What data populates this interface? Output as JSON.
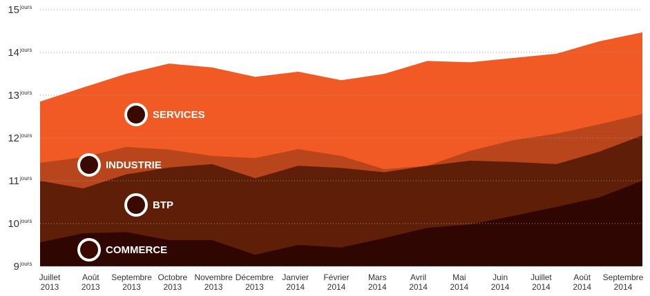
{
  "chart_data": {
    "type": "area",
    "y_unit": "jours",
    "categories": [
      "Juillet\n2013",
      "Août\n2013",
      "Septembre\n2013",
      "Octobre\n2013",
      "Novembre\n2013",
      "Décembre\n2013",
      "Janvier\n2014",
      "Février\n2014",
      "Mars\n2014",
      "Avril\n2014",
      "Mai\n2014",
      "Juin\n2014",
      "Juillet\n2014",
      "Août\n2014",
      "Septembre\n2014"
    ],
    "series": [
      {
        "name": "SERVICES",
        "color": "#f15a24",
        "values": [
          12.85,
          13.18,
          13.5,
          13.74,
          13.65,
          13.43,
          13.55,
          13.35,
          13.5,
          13.8,
          13.77,
          13.87,
          13.97,
          14.26,
          14.47
        ]
      },
      {
        "name": "INDUSTRIE",
        "color": "#b8451b",
        "values": [
          11.42,
          11.55,
          11.79,
          11.73,
          11.58,
          11.53,
          11.74,
          11.58,
          11.27,
          11.35,
          11.7,
          11.95,
          12.1,
          12.32,
          12.56
        ]
      },
      {
        "name": "BTP",
        "color": "#5e1e08",
        "values": [
          11.0,
          10.82,
          11.15,
          11.31,
          11.39,
          11.06,
          11.35,
          11.3,
          11.2,
          11.35,
          11.47,
          11.44,
          11.39,
          11.68,
          12.06
        ]
      },
      {
        "name": "COMMERCE",
        "color": "#2f0601",
        "values": [
          9.56,
          9.77,
          9.8,
          9.61,
          9.61,
          9.27,
          9.5,
          9.44,
          9.66,
          9.9,
          9.98,
          10.18,
          10.39,
          10.61,
          11.0
        ]
      }
    ],
    "ylim": [
      9,
      15
    ],
    "yticks": [
      9,
      10,
      11,
      12,
      13,
      14,
      15
    ],
    "grid": true
  }
}
